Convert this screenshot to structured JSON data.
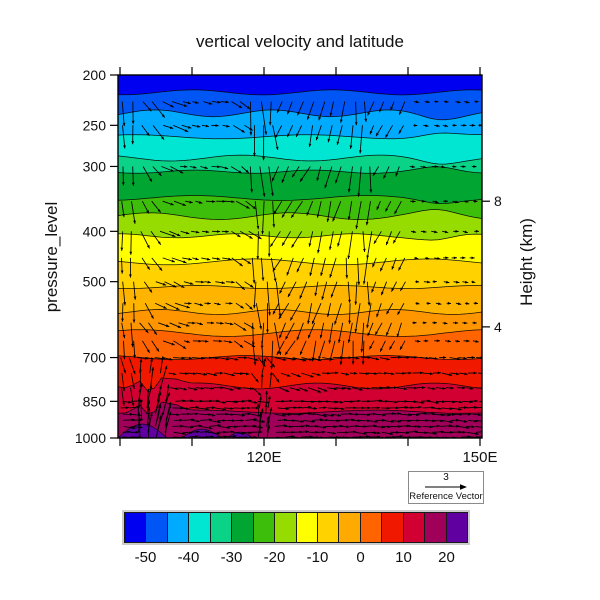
{
  "title": "vertical velocity and latitude",
  "axes": {
    "left": {
      "label": "pressure_level",
      "tick_values": [
        200,
        250,
        300,
        400,
        500,
        700,
        850,
        1000
      ]
    },
    "right": {
      "label": "Height (km)",
      "ticks": [
        {
          "km": "8",
          "pressure": 350
        },
        {
          "km": "4",
          "pressure": 611
        }
      ]
    },
    "bottom": {
      "tick_degrees": [
        100,
        110,
        120,
        130,
        140,
        150
      ],
      "labels": {
        "120": "120E",
        "150": "150E"
      }
    }
  },
  "reference_vector": {
    "value": "3",
    "label": "Reference Vector"
  },
  "colorbar": {
    "colors": [
      "#0000f0",
      "#0055f5",
      "#00aaff",
      "#00e6d2",
      "#0ad287",
      "#00a532",
      "#3cbe0a",
      "#96dc00",
      "#ffff00",
      "#ffd200",
      "#ffaa00",
      "#ff6400",
      "#f01900",
      "#d20032",
      "#a0005a",
      "#6000a0"
    ],
    "tick_labels": [
      "-50",
      "-40",
      "-30",
      "-20",
      "-10",
      "0",
      "10",
      "20"
    ]
  },
  "chart_data": {
    "type": "heatmap",
    "subtype": "filled-contour-with-vector-overlay",
    "title": "vertical velocity and latitude",
    "x_axis": {
      "unit": "degrees east",
      "min": 99.7,
      "max": 150.3,
      "ticks": [
        100,
        110,
        120,
        130,
        140,
        150
      ],
      "tick_labels_shown": [
        "120E",
        "150E"
      ]
    },
    "y_axis": {
      "label": "pressure_level",
      "scale": "log",
      "min": 200,
      "max": 1000,
      "ticks": [
        200,
        250,
        300,
        400,
        500,
        700,
        850,
        1000
      ]
    },
    "y2_axis": {
      "label": "Height (km)",
      "ticks": [
        {
          "km": "8",
          "pressure": 350
        },
        {
          "km": "4",
          "pressure": 611
        }
      ]
    },
    "contour_fill": {
      "variable": "vertical velocity",
      "level_interval": 5,
      "levels": [
        -55,
        -50,
        -45,
        -40,
        -35,
        -30,
        -25,
        -20,
        -15,
        -10,
        -5,
        0,
        5,
        10,
        15,
        20,
        25
      ],
      "colors": [
        "#0000f0",
        "#0055f5",
        "#00aaff",
        "#00e6d2",
        "#0ad287",
        "#00a532",
        "#3cbe0a",
        "#96dc00",
        "#ffff00",
        "#ffd200",
        "#ffb400",
        "#ff9600",
        "#ff6400",
        "#f01900",
        "#d20032",
        "#a0005a"
      ],
      "band_boundary_pressures": [
        200,
        216,
        237,
        263,
        289,
        307,
        345,
        374,
        408,
        458,
        512,
        572,
        628,
        700,
        794,
        890,
        1000
      ],
      "extra_patch_color": "#6000a0",
      "extra_patches": [
        {
          "f0": 0.0,
          "f1": 0.135,
          "peak": 14
        },
        {
          "f0": 0.175,
          "f1": 0.285,
          "peak": 9
        },
        {
          "f0": 0.3,
          "f1": 0.37,
          "peak": 6
        }
      ],
      "line_color": "#000000"
    },
    "vectors": {
      "color": "#000000",
      "reference_value": 3,
      "seed": 42,
      "row_pressures": [
        225,
        250,
        300,
        350,
        400,
        450,
        500,
        550,
        600,
        650,
        700,
        750,
        800,
        850,
        875,
        900,
        925,
        950,
        975,
        1000
      ],
      "profiles": {
        "upper": [
          [
            0.045,
            85,
            20
          ],
          [
            0.1,
            55,
            16
          ],
          [
            0.17,
            24,
            13
          ],
          [
            0.3,
            9,
            8
          ],
          [
            0.36,
            35,
            12
          ],
          [
            0.44,
            86,
            28
          ],
          [
            0.53,
            118,
            16
          ],
          [
            0.62,
            106,
            18
          ],
          [
            0.7,
            93,
            24
          ],
          [
            0.8,
            114,
            12
          ],
          [
            1.01,
            6,
            5
          ]
        ],
        "mid": [
          [
            0.045,
            75,
            15
          ],
          [
            0.36,
            7,
            10
          ],
          [
            0.43,
            50,
            13
          ],
          [
            0.55,
            18,
            11
          ],
          [
            1.01,
            5,
            9
          ]
        ],
        "low": [
          [
            1.01,
            2,
            10
          ]
        ],
        "streaks": [
          {
            "f0": 0.05,
            "f1": 0.095,
            "a": -85,
            "l": 17
          },
          {
            "f0": 0.1,
            "f1": 0.135,
            "a": -78,
            "l": 19
          },
          {
            "f0": 0.385,
            "f1": 0.42,
            "a": -85,
            "l": 13
          }
        ]
      }
    }
  }
}
